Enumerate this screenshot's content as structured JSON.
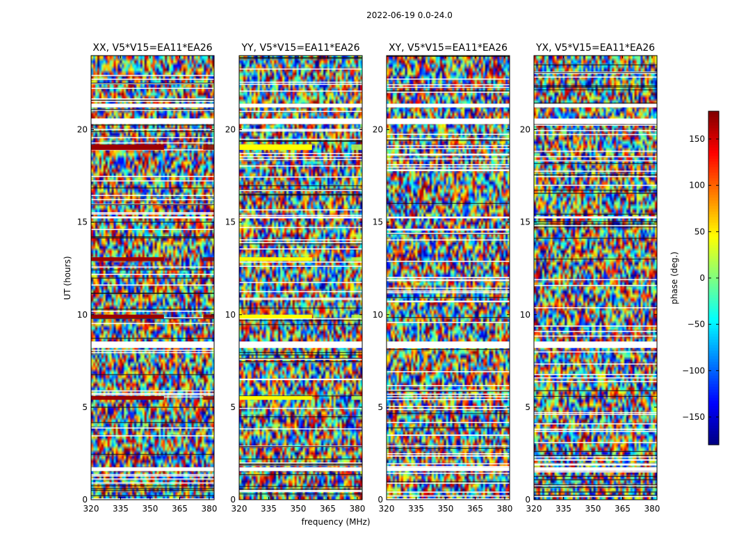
{
  "suptitle": "2022-06-19 0.0-24.0",
  "chart_data": {
    "type": "heatmap",
    "xlabel": "frequency (MHz)",
    "ylabel": "UT (hours)",
    "xlim": [
      320,
      382.5
    ],
    "ylim": [
      0,
      24
    ],
    "xticks": [
      320,
      335,
      350,
      365,
      380
    ],
    "yticks": [
      0,
      5,
      10,
      15,
      20
    ],
    "panels": [
      {
        "title": "XX, V5*V15=EA11*EA26",
        "bright_phase": 170,
        "far_phase": 175
      },
      {
        "title": "YY, V5*V15=EA11*EA26",
        "bright_phase": 45,
        "far_phase": 20
      },
      {
        "title": "XY, V5*V15=EA11*EA26",
        "bright_phase": null,
        "far_phase": null
      },
      {
        "title": "YX, V5*V15=EA11*EA26",
        "bright_phase": null,
        "far_phase": null
      }
    ],
    "bright_bands_hours": [
      [
        5.4,
        5.6
      ],
      [
        9.8,
        10.0
      ],
      [
        12.9,
        13.1
      ],
      [
        18.9,
        19.2
      ]
    ],
    "gap_bands_hours": [
      [
        1.55,
        1.75
      ],
      [
        8.2,
        8.55
      ],
      [
        15.2,
        15.3
      ],
      [
        20.3,
        20.6
      ],
      [
        21.2,
        21.4
      ]
    ],
    "colorbar": {
      "label": "phase (deg.)",
      "range": [
        -180,
        180
      ],
      "ticks": [
        -150,
        -100,
        -50,
        0,
        50,
        100,
        150
      ]
    }
  }
}
